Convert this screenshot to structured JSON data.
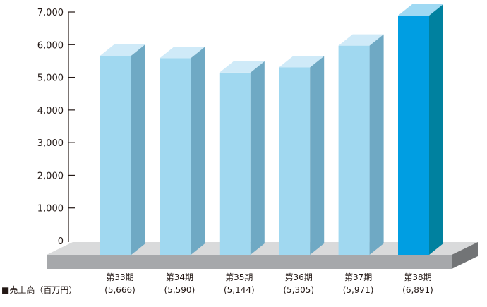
{
  "chart_data": {
    "type": "bar",
    "style": "3d",
    "categories": [
      "第33期",
      "第34期",
      "第35期",
      "第36期",
      "第37期",
      "第38期"
    ],
    "value_labels": [
      "(5,666)",
      "(5,590)",
      "(5,144)",
      "(5,305)",
      "(5,971)",
      "(6,891)"
    ],
    "series": [
      {
        "name": "■売上高（百万円）",
        "values": [
          5666,
          5590,
          5144,
          5305,
          5971,
          6891
        ]
      }
    ],
    "ylim": [
      0,
      7000
    ],
    "yticks": [
      0,
      1000,
      2000,
      3000,
      4000,
      5000,
      6000,
      7000
    ],
    "ytick_labels": [
      "0",
      "1,000",
      "2,000",
      "3,000",
      "4,000",
      "5,000",
      "6,000",
      "7,000"
    ],
    "highlight_index": 5,
    "grid": false,
    "legend_position": "bottom-left"
  },
  "colors": {
    "bar_front": "#a0d8f0",
    "bar_top": "#cfeaf8",
    "bar_side": "#6fa9c4",
    "highlight_front": "#009ee2",
    "highlight_top": "#9fd9f3",
    "highlight_side": "#00819f",
    "floor_top": "#d9dadb",
    "floor_front": "#a6a8ab",
    "floor_side": "#727476",
    "axis": "#231815"
  }
}
